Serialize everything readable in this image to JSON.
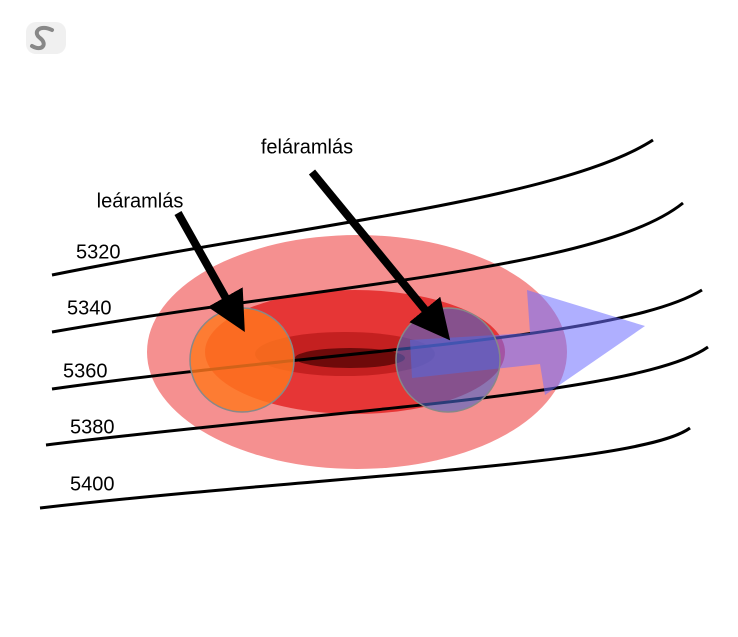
{
  "labels": {
    "downflow": "leáramlás",
    "upflow": "feláramlás"
  },
  "contours": [
    "5320",
    "5340",
    "5360",
    "5380",
    "5400"
  ]
}
